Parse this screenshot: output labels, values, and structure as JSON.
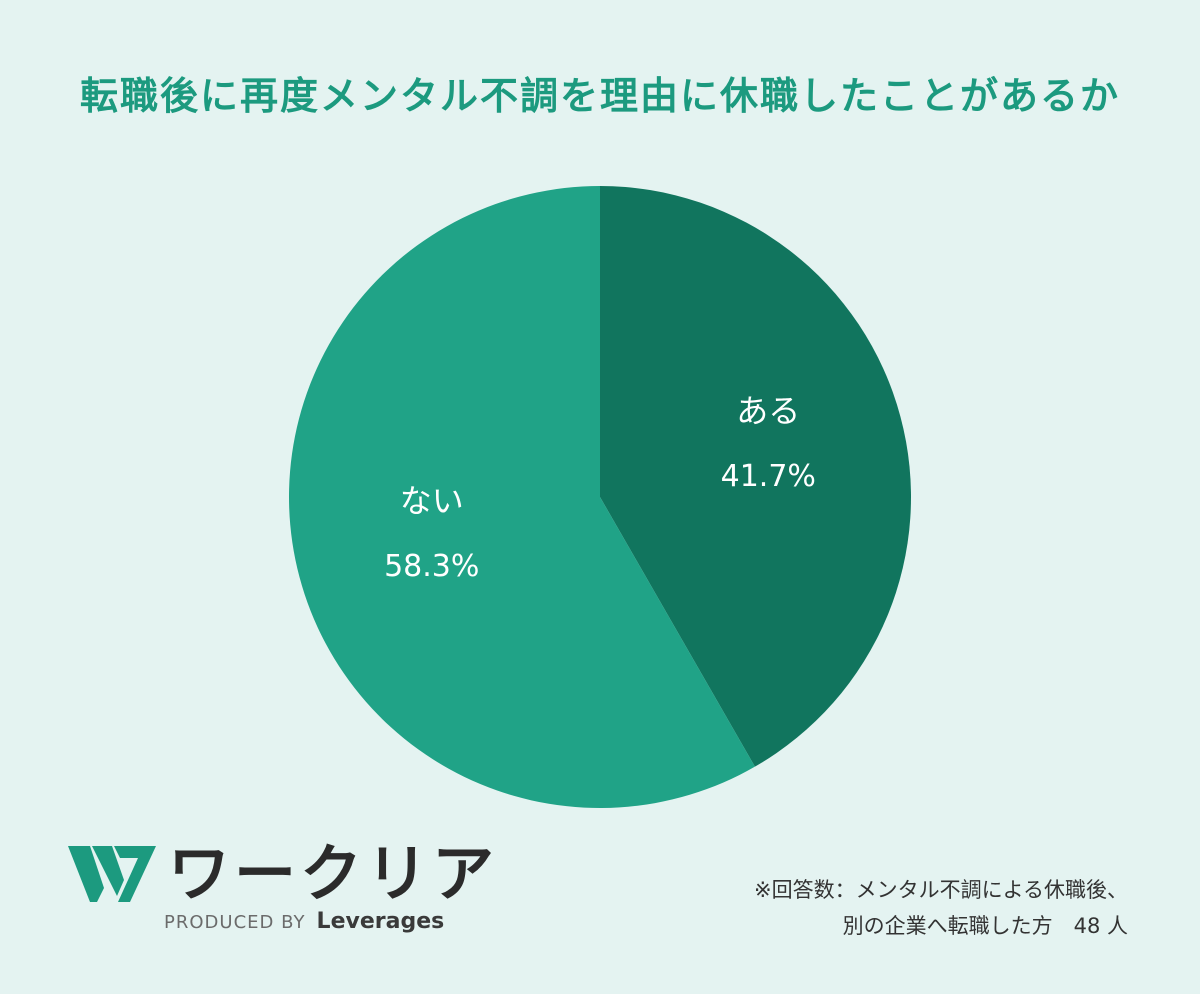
{
  "title": "転職後に再度メンタル不調を理由に休職したことがあるか",
  "colors": {
    "background": "#e4f3f1",
    "title": "#1c9a7f",
    "slice_aru": "#11755e",
    "slice_nai": "#20a387",
    "label": "#ffffff",
    "logo_green": "#1c9a7f"
  },
  "chart_data": {
    "type": "pie",
    "title": "転職後に再度メンタル不調を理由に休職したことがあるか",
    "start_angle": "12 o'clock",
    "direction": "clockwise",
    "slices": [
      {
        "label": "ある",
        "value": 41.7,
        "display": "41.7%"
      },
      {
        "label": "ない",
        "value": 58.3,
        "display": "58.3%"
      }
    ]
  },
  "logo": {
    "icon": "w-logo-icon",
    "name": "ワークリア",
    "produced_by": "PRODUCED BY",
    "brand": "Leverages"
  },
  "note": {
    "line1": "※回答数：メンタル不調による休職後、",
    "line2": "別の企業へ転職した方　48 人"
  }
}
